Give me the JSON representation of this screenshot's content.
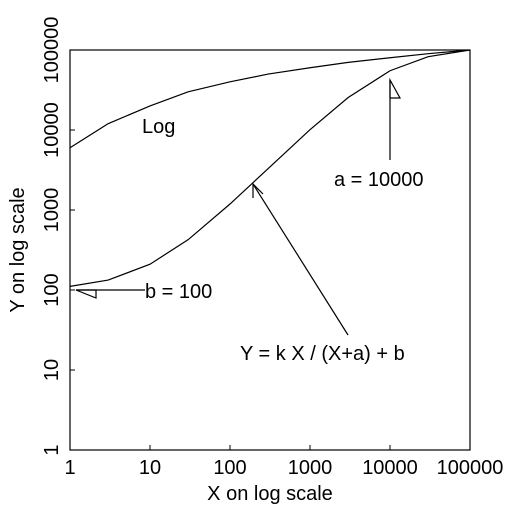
{
  "chart_data": {
    "type": "line",
    "x_label": "X on log scale",
    "y_label": "Y on log scale",
    "x": [
      1,
      3,
      10,
      30,
      100,
      300,
      1000,
      3000,
      10000,
      30000,
      100000
    ],
    "series": [
      {
        "name": "Log",
        "color": "#000000",
        "values": [
          6000,
          12000,
          20000,
          30000,
          40000,
          50000,
          60000,
          70000,
          80000,
          90000,
          100000
        ]
      },
      {
        "name": "Y = k X / (X+a) + b",
        "color": "#000000",
        "values": [
          111,
          133,
          210,
          426,
          1188,
          3301,
          10090,
          25459,
          55045,
          82517,
          100000
        ]
      }
    ],
    "annotations": [
      "a = 10000",
      "b = 100"
    ],
    "xscale": "log",
    "yscale": "log",
    "xlim": [
      1,
      100000
    ],
    "ylim": [
      1,
      100000
    ],
    "xticks": [
      1,
      10,
      100,
      1000,
      10000,
      100000
    ],
    "yticks": [
      1,
      10,
      100,
      1000,
      10000,
      100000
    ],
    "grid": false
  }
}
